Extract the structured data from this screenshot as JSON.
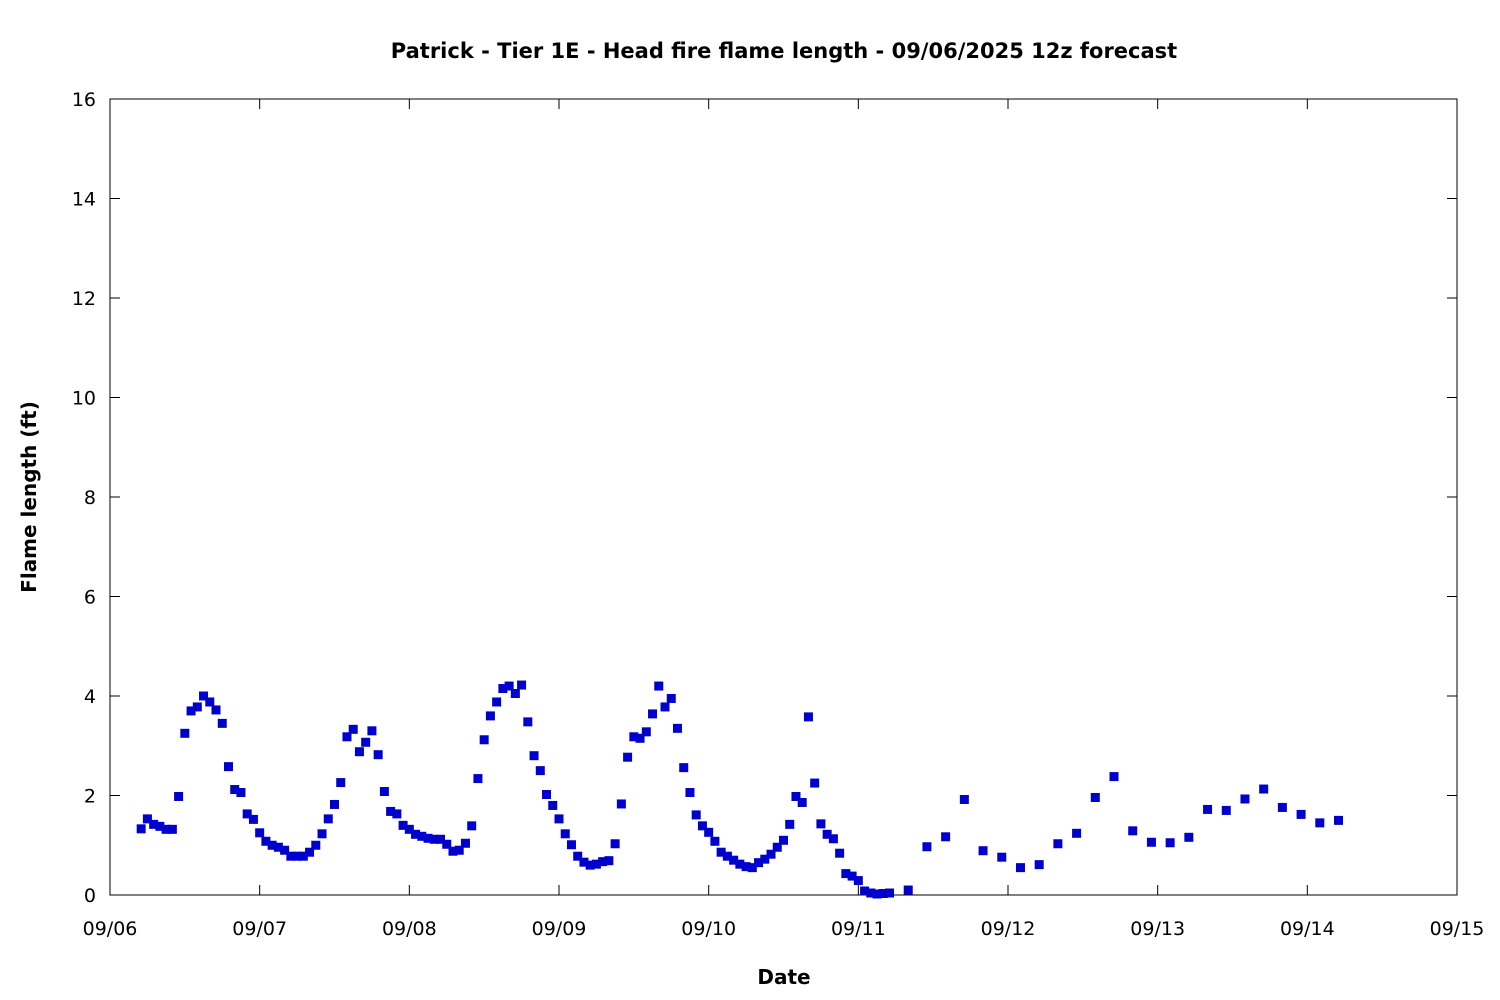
{
  "chart_data": {
    "type": "scatter",
    "title": "Patrick - Tier 1E - Head fire flame length - 09/06/2025 12z forecast",
    "xlabel": "Date",
    "ylabel": "Flame length (ft)",
    "x_axis_type": "date",
    "xlim": [
      "09/06",
      "09/15"
    ],
    "ylim": [
      0,
      16
    ],
    "x_tick_labels": [
      "09/06",
      "09/07",
      "09/08",
      "09/09",
      "09/10",
      "09/11",
      "09/12",
      "09/13",
      "09/14",
      "09/15"
    ],
    "y_ticks": [
      0,
      2,
      4,
      6,
      8,
      10,
      12,
      14,
      16
    ],
    "grid": false,
    "legend": "none",
    "marker": "square",
    "series_color": "#0000cc",
    "series": [
      {
        "x": [
          "09/06 05:00",
          "09/06 06:00",
          "09/06 07:00",
          "09/06 08:00",
          "09/06 09:00",
          "09/06 10:00",
          "09/06 11:00",
          "09/06 12:00",
          "09/06 13:00",
          "09/06 14:00",
          "09/06 15:00",
          "09/06 16:00",
          "09/06 17:00",
          "09/06 18:00",
          "09/06 19:00",
          "09/06 20:00",
          "09/06 21:00",
          "09/06 22:00",
          "09/06 23:00",
          "09/07 00:00",
          "09/07 01:00",
          "09/07 02:00",
          "09/07 03:00",
          "09/07 04:00",
          "09/07 05:00",
          "09/07 06:00",
          "09/07 07:00",
          "09/07 08:00",
          "09/07 09:00",
          "09/07 10:00",
          "09/07 11:00",
          "09/07 12:00",
          "09/07 13:00",
          "09/07 14:00",
          "09/07 15:00",
          "09/07 16:00",
          "09/07 17:00",
          "09/07 18:00",
          "09/07 19:00",
          "09/07 20:00",
          "09/07 21:00",
          "09/07 22:00",
          "09/07 23:00",
          "09/08 00:00",
          "09/08 01:00",
          "09/08 02:00",
          "09/08 03:00",
          "09/08 04:00",
          "09/08 05:00",
          "09/08 06:00",
          "09/08 07:00",
          "09/08 08:00",
          "09/08 09:00",
          "09/08 10:00",
          "09/08 11:00",
          "09/08 12:00",
          "09/08 13:00",
          "09/08 14:00",
          "09/08 15:00",
          "09/08 16:00",
          "09/08 17:00",
          "09/08 18:00",
          "09/08 19:00",
          "09/08 20:00",
          "09/08 21:00",
          "09/08 22:00",
          "09/08 23:00",
          "09/09 00:00",
          "09/09 01:00",
          "09/09 02:00",
          "09/09 03:00",
          "09/09 04:00",
          "09/09 05:00",
          "09/09 06:00",
          "09/09 07:00",
          "09/09 08:00",
          "09/09 09:00",
          "09/09 10:00",
          "09/09 11:00",
          "09/09 12:00",
          "09/09 13:00",
          "09/09 14:00",
          "09/09 15:00",
          "09/09 16:00",
          "09/09 17:00",
          "09/09 18:00",
          "09/09 19:00",
          "09/09 20:00",
          "09/09 21:00",
          "09/09 22:00",
          "09/09 23:00",
          "09/10 00:00",
          "09/10 01:00",
          "09/10 02:00",
          "09/10 03:00",
          "09/10 04:00",
          "09/10 05:00",
          "09/10 06:00",
          "09/10 07:00",
          "09/10 08:00",
          "09/10 09:00",
          "09/10 10:00",
          "09/10 11:00",
          "09/10 12:00",
          "09/10 13:00",
          "09/10 14:00",
          "09/10 15:00",
          "09/10 16:00",
          "09/10 17:00",
          "09/10 18:00",
          "09/10 19:00",
          "09/10 20:00",
          "09/10 21:00",
          "09/10 22:00",
          "09/10 23:00",
          "09/11 00:00",
          "09/11 01:00",
          "09/11 02:00",
          "09/11 03:00",
          "09/11 04:00",
          "09/11 05:00",
          "09/11 08:00",
          "09/11 11:00",
          "09/11 14:00",
          "09/11 17:00",
          "09/11 20:00",
          "09/11 23:00",
          "09/12 02:00",
          "09/12 05:00",
          "09/12 08:00",
          "09/12 11:00",
          "09/12 14:00",
          "09/12 17:00",
          "09/12 20:00",
          "09/12 23:00",
          "09/13 02:00",
          "09/13 05:00",
          "09/13 08:00",
          "09/13 11:00",
          "09/13 14:00",
          "09/13 17:00",
          "09/13 20:00",
          "09/13 23:00",
          "09/14 02:00",
          "09/14 05:00"
        ],
        "y": [
          1.33,
          1.53,
          1.42,
          1.38,
          1.32,
          1.32,
          1.98,
          3.25,
          3.7,
          3.78,
          4.0,
          3.88,
          3.72,
          3.45,
          2.58,
          2.12,
          2.06,
          1.63,
          1.52,
          1.25,
          1.08,
          1.0,
          0.96,
          0.9,
          0.78,
          0.78,
          0.78,
          0.86,
          1.0,
          1.23,
          1.53,
          1.82,
          2.26,
          3.18,
          3.33,
          2.88,
          3.07,
          3.3,
          2.82,
          2.08,
          1.68,
          1.63,
          1.4,
          1.32,
          1.22,
          1.18,
          1.14,
          1.12,
          1.12,
          1.02,
          0.88,
          0.9,
          1.04,
          1.39,
          2.34,
          3.12,
          3.6,
          3.88,
          4.15,
          4.2,
          4.05,
          4.22,
          3.48,
          2.8,
          2.5,
          2.02,
          1.8,
          1.53,
          1.23,
          1.01,
          0.78,
          0.66,
          0.6,
          0.62,
          0.67,
          0.69,
          1.03,
          1.83,
          2.77,
          3.18,
          3.15,
          3.28,
          3.64,
          4.2,
          3.78,
          3.95,
          3.35,
          2.56,
          2.06,
          1.61,
          1.39,
          1.26,
          1.08,
          0.86,
          0.78,
          0.7,
          0.62,
          0.57,
          0.55,
          0.65,
          0.72,
          0.82,
          0.96,
          1.1,
          1.42,
          1.98,
          1.86,
          3.58,
          2.25,
          1.43,
          1.22,
          1.13,
          0.84,
          0.43,
          0.38,
          0.29,
          0.08,
          0.04,
          0.02,
          0.03,
          0.04,
          0.1,
          0.97,
          1.17,
          1.92,
          0.89,
          0.76,
          0.55,
          0.61,
          1.03,
          1.24,
          1.96,
          2.38,
          1.29,
          1.06,
          1.05,
          1.16,
          1.72,
          1.7,
          1.93,
          2.13,
          1.76,
          1.62,
          1.45,
          1.5
        ]
      }
    ]
  }
}
